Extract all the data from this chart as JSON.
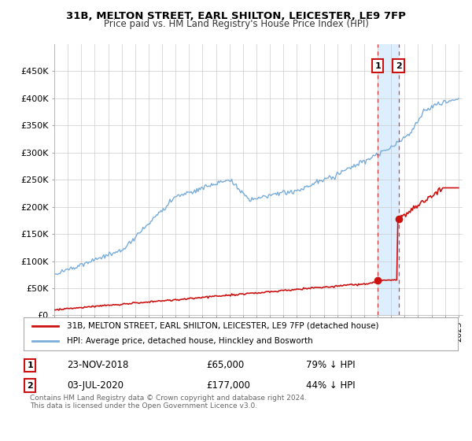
{
  "title": "31B, MELTON STREET, EARL SHILTON, LEICESTER, LE9 7FP",
  "subtitle": "Price paid vs. HM Land Registry's House Price Index (HPI)",
  "ylim": [
    0,
    500000
  ],
  "ytick_labels": [
    "£0",
    "£50K",
    "£100K",
    "£150K",
    "£200K",
    "£250K",
    "£300K",
    "£350K",
    "£400K",
    "£450K"
  ],
  "ytick_values": [
    0,
    50000,
    100000,
    150000,
    200000,
    250000,
    300000,
    350000,
    400000,
    450000
  ],
  "hpi_color": "#7aadda",
  "price_color": "#cc1111",
  "marker1_x": 2019.0,
  "marker1_price": 65000,
  "marker2_x": 2020.55,
  "marker2_price": 177000,
  "legend1": "31B, MELTON STREET, EARL SHILTON, LEICESTER, LE9 7FP (detached house)",
  "legend2": "HPI: Average price, detached house, Hinckley and Bosworth",
  "footer": "Contains HM Land Registry data © Crown copyright and database right 2024.\nThis data is licensed under the Open Government Licence v3.0.",
  "highlight_color": "#ddeeff",
  "grid_color": "#cccccc",
  "bg_color": "#ffffff"
}
